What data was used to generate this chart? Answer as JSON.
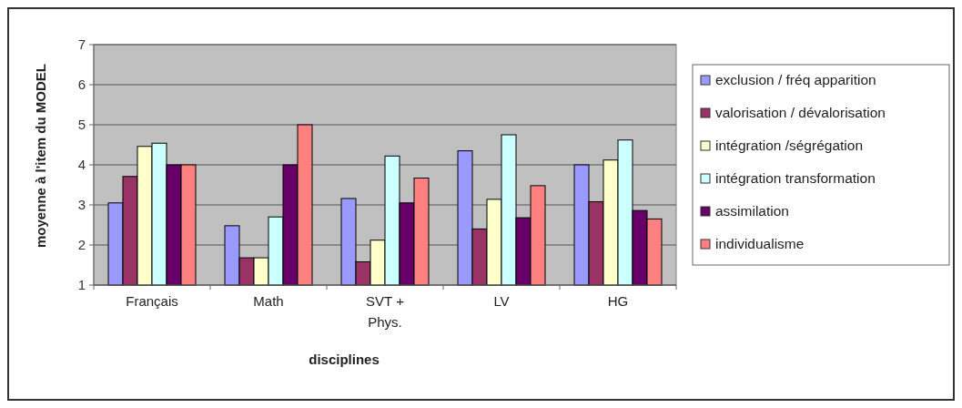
{
  "chart_data": {
    "type": "bar",
    "xlabel": "disciplines",
    "ylabel": "moyenne à l'item du MODEL",
    "categories": [
      "Français",
      "Math",
      "SVT + Phys.",
      "LV",
      "HG"
    ],
    "series": [
      {
        "name": "exclusion / fréq apparition",
        "color": "#9999ff",
        "values": [
          3.05,
          2.48,
          3.16,
          4.35,
          4.0
        ]
      },
      {
        "name": "valorisation / dévalorisation",
        "color": "#993366",
        "values": [
          3.71,
          1.68,
          1.58,
          2.4,
          3.08
        ]
      },
      {
        "name": "intégration /ségrégation",
        "color": "#ffffcc",
        "values": [
          4.46,
          1.68,
          2.12,
          3.14,
          4.12
        ]
      },
      {
        "name": "intégration transformation",
        "color": "#ccffff",
        "values": [
          4.54,
          2.7,
          4.22,
          4.75,
          4.62
        ]
      },
      {
        "name": "assimilation",
        "color": "#660066",
        "values": [
          4.0,
          4.0,
          3.05,
          2.68,
          2.86
        ]
      },
      {
        "name": "individualisme",
        "color": "#ff8080",
        "values": [
          4.0,
          5.0,
          3.67,
          3.48,
          2.65
        ]
      }
    ],
    "ylim": [
      1,
      7
    ],
    "yticks": [
      1,
      2,
      3,
      4,
      5,
      6,
      7
    ],
    "grid": "y",
    "legend": "right"
  }
}
